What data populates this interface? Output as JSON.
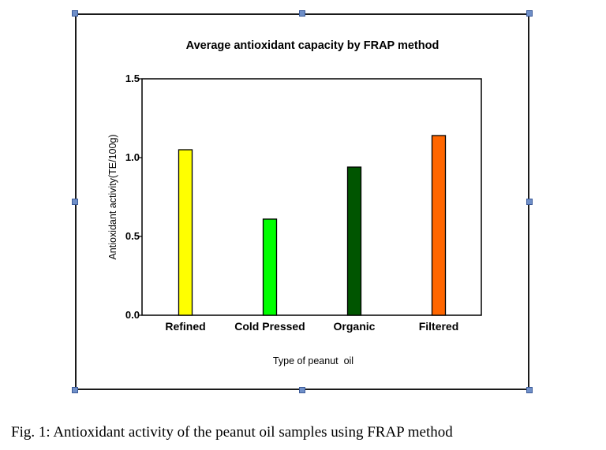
{
  "chart_data": {
    "type": "bar",
    "title": "Average antioxidant capacity by FRAP method",
    "xlabel": "Type of peanut  oil",
    "ylabel": "Antioxidant activity(TE/100g)",
    "ylim": [
      0,
      1.5
    ],
    "yticks": [
      "0.0",
      "0.5",
      "1.0",
      "1.5"
    ],
    "categories": [
      "Refined",
      "Cold Pressed",
      "Organic",
      "Filtered"
    ],
    "values": [
      1.05,
      0.61,
      0.94,
      1.14
    ],
    "colors": [
      "#ffff00",
      "#00ff00",
      "#005500",
      "#ff6600"
    ],
    "grid": false,
    "legend": "none"
  },
  "caption": "Fig. 1: Antioxidant activity of the peanut oil samples using FRAP method",
  "colors": {
    "frame": "#1a1a1a",
    "handle": "#6f8fc8",
    "bar_outline": "#000000"
  }
}
